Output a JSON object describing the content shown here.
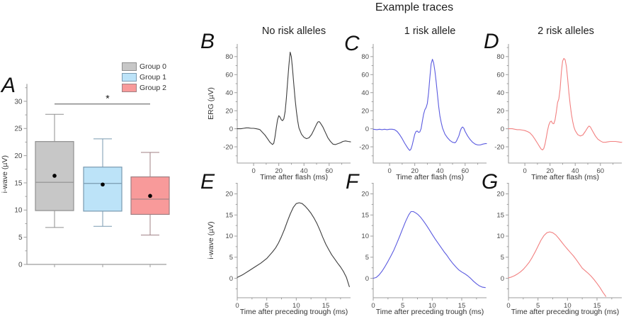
{
  "figure": {
    "title": "Example traces"
  },
  "colors": {
    "axis": "#9e9e9e",
    "tick_label": "#4a4a4a",
    "label_text": "#333333",
    "trace_black": "#3d3d3d",
    "trace_blue": "#5b5be0",
    "trace_red": "#f28080"
  },
  "chart_data": [
    {
      "type": "box",
      "letter": "A",
      "ylabel": "i-wave (µV)",
      "ylim": [
        0,
        33.2
      ],
      "yticks": [
        0,
        5,
        10,
        15,
        20,
        25,
        30
      ],
      "yminor": [
        2.5,
        7.5,
        12.5,
        17.5,
        22.5,
        27.5,
        32.5
      ],
      "groups": [
        {
          "label": "Group 0",
          "fill": "#c7c7c7",
          "stroke": "#8f8f8f",
          "whisker_low": 6.8,
          "q1": 9.9,
          "median": 15.1,
          "q3": 22.6,
          "whisker_high": 27.6,
          "mean": 16.3
        },
        {
          "label": "Group 1",
          "fill": "#bce3f8",
          "stroke": "#7a9ab0",
          "whisker_low": 7.0,
          "q1": 9.8,
          "median": 14.9,
          "q3": 17.9,
          "whisker_high": 23.1,
          "mean": 14.7
        },
        {
          "label": "Group 2",
          "fill": "#f89a9a",
          "stroke": "#a08084",
          "whisker_low": 5.4,
          "q1": 9.2,
          "median": 12.0,
          "q3": 16.1,
          "whisker_high": 20.6,
          "mean": 12.6
        }
      ],
      "significance": {
        "from_group": 0,
        "to_group": 2,
        "y": 29.5,
        "label": "*"
      }
    },
    {
      "type": "line",
      "letter": "B",
      "row": "top",
      "title": "No risk alleles",
      "xlabel": "Time after flash (ms)",
      "ylabel": "ERG (µV)",
      "color": "#3d3d3d",
      "xlim": [
        -13,
        77
      ],
      "ylim": [
        -38,
        94
      ],
      "xticks": [
        0,
        20,
        40,
        60
      ],
      "xminor": [
        10,
        30,
        50,
        70
      ],
      "yticks": [
        -20,
        0,
        20,
        40,
        60,
        80
      ],
      "yminor": [
        -30,
        -10,
        10,
        30,
        50,
        70,
        90
      ],
      "points": [
        [
          -13,
          0
        ],
        [
          -10,
          0
        ],
        [
          -8,
          0.5
        ],
        [
          -6,
          1
        ],
        [
          -4,
          1
        ],
        [
          -2,
          0.5
        ],
        [
          0,
          0.5
        ],
        [
          2,
          0
        ],
        [
          4,
          -0.5
        ],
        [
          5,
          -1
        ],
        [
          7,
          -4
        ],
        [
          9,
          -7
        ],
        [
          11,
          -11
        ],
        [
          13,
          -15
        ],
        [
          15,
          -17.5
        ],
        [
          16,
          -16
        ],
        [
          17,
          -9
        ],
        [
          18,
          1
        ],
        [
          19,
          10
        ],
        [
          20,
          14.5
        ],
        [
          21,
          13
        ],
        [
          22,
          10
        ],
        [
          23,
          9
        ],
        [
          24,
          11
        ],
        [
          25,
          19
        ],
        [
          26,
          33
        ],
        [
          27,
          52
        ],
        [
          28,
          70
        ],
        [
          29,
          85
        ],
        [
          30,
          80
        ],
        [
          31,
          65
        ],
        [
          32,
          48
        ],
        [
          33,
          32
        ],
        [
          34,
          19
        ],
        [
          35,
          9
        ],
        [
          36,
          1
        ],
        [
          38,
          -6
        ],
        [
          40,
          -9.5
        ],
        [
          42,
          -11
        ],
        [
          44,
          -10
        ],
        [
          46,
          -6.5
        ],
        [
          48,
          -1
        ],
        [
          50,
          5
        ],
        [
          51,
          7.5
        ],
        [
          52,
          8
        ],
        [
          53,
          6.5
        ],
        [
          55,
          2
        ],
        [
          57,
          -4
        ],
        [
          59,
          -10
        ],
        [
          61,
          -14
        ],
        [
          63,
          -17
        ],
        [
          65,
          -17.5
        ],
        [
          67,
          -16.5
        ],
        [
          69,
          -15.5
        ],
        [
          71,
          -14
        ],
        [
          73,
          -13.5
        ],
        [
          75,
          -14
        ],
        [
          77,
          -14.5
        ]
      ]
    },
    {
      "type": "line",
      "letter": "C",
      "row": "top",
      "title": "1 risk allele",
      "xlabel": "Time after flash (ms)",
      "ylabel": "",
      "color": "#5b5be0",
      "xlim": [
        -13,
        77
      ],
      "ylim": [
        -38,
        94
      ],
      "xticks": [
        0,
        20,
        40,
        60
      ],
      "xminor": [
        10,
        30,
        50,
        70
      ],
      "yticks": [
        -20,
        0,
        20,
        40,
        60,
        80
      ],
      "yminor": [
        -30,
        -10,
        10,
        30,
        50,
        70,
        90
      ],
      "points": [
        [
          -13,
          -0.5
        ],
        [
          -10,
          -1
        ],
        [
          -8,
          -0.5
        ],
        [
          -6,
          -1
        ],
        [
          -4,
          -0.5
        ],
        [
          -2,
          -1
        ],
        [
          0,
          -0.5
        ],
        [
          2,
          -0.5
        ],
        [
          4,
          -1
        ],
        [
          6,
          -3
        ],
        [
          8,
          -6.5
        ],
        [
          10,
          -11
        ],
        [
          12,
          -16
        ],
        [
          14,
          -20.5
        ],
        [
          15,
          -22.5
        ],
        [
          16,
          -24
        ],
        [
          17,
          -22.5
        ],
        [
          18,
          -18
        ],
        [
          19,
          -12
        ],
        [
          20,
          -6
        ],
        [
          21,
          -3
        ],
        [
          22,
          -2.5
        ],
        [
          23,
          -4
        ],
        [
          24,
          -3.5
        ],
        [
          25,
          0
        ],
        [
          26,
          8
        ],
        [
          27,
          16
        ],
        [
          28,
          21
        ],
        [
          29,
          23.5
        ],
        [
          30,
          28
        ],
        [
          31,
          40
        ],
        [
          32,
          57
        ],
        [
          33,
          72
        ],
        [
          34,
          77
        ],
        [
          35,
          73
        ],
        [
          36,
          64
        ],
        [
          37,
          52
        ],
        [
          38,
          38
        ],
        [
          39,
          25
        ],
        [
          40,
          14
        ],
        [
          41,
          7
        ],
        [
          42,
          1
        ],
        [
          44,
          -6
        ],
        [
          46,
          -10
        ],
        [
          48,
          -13
        ],
        [
          50,
          -15
        ],
        [
          52,
          -15.5
        ],
        [
          53,
          -14
        ],
        [
          55,
          -8
        ],
        [
          56,
          -3
        ],
        [
          57,
          0.5
        ],
        [
          58,
          2
        ],
        [
          59,
          0.5
        ],
        [
          60,
          -3
        ],
        [
          62,
          -8
        ],
        [
          64,
          -12
        ],
        [
          66,
          -15
        ],
        [
          68,
          -17
        ],
        [
          70,
          -18
        ],
        [
          72,
          -18
        ],
        [
          74,
          -17
        ],
        [
          76,
          -16.5
        ],
        [
          77,
          -16.5
        ]
      ]
    },
    {
      "type": "line",
      "letter": "D",
      "row": "top",
      "title": "2 risk alleles",
      "xlabel": "Time after flash (ms)",
      "ylabel": "",
      "color": "#f28080",
      "xlim": [
        -13,
        77
      ],
      "ylim": [
        -38,
        94
      ],
      "xticks": [
        0,
        20,
        40,
        60
      ],
      "xminor": [
        10,
        30,
        50,
        70
      ],
      "yticks": [
        -20,
        0,
        20,
        40,
        60,
        80
      ],
      "yminor": [
        -30,
        -10,
        10,
        30,
        50,
        70,
        90
      ],
      "points": [
        [
          -13,
          0
        ],
        [
          -10,
          0
        ],
        [
          -8,
          -0.5
        ],
        [
          -6,
          -1
        ],
        [
          -4,
          -1
        ],
        [
          -2,
          -1.5
        ],
        [
          0,
          -2
        ],
        [
          2,
          -3
        ],
        [
          4,
          -4.5
        ],
        [
          6,
          -7.5
        ],
        [
          8,
          -11.5
        ],
        [
          10,
          -16
        ],
        [
          12,
          -20.5
        ],
        [
          13,
          -22.5
        ],
        [
          14,
          -23.5
        ],
        [
          15,
          -22
        ],
        [
          16,
          -17
        ],
        [
          17,
          -10
        ],
        [
          18,
          -2
        ],
        [
          19,
          4
        ],
        [
          20,
          7.5
        ],
        [
          21,
          8.5
        ],
        [
          22,
          6
        ],
        [
          23,
          5.5
        ],
        [
          24,
          10
        ],
        [
          25,
          19
        ],
        [
          26,
          29
        ],
        [
          27,
          33
        ],
        [
          28,
          44
        ],
        [
          29,
          63
        ],
        [
          30,
          75
        ],
        [
          31,
          78
        ],
        [
          32,
          76.5
        ],
        [
          33,
          69
        ],
        [
          34,
          55
        ],
        [
          35,
          40
        ],
        [
          36,
          27
        ],
        [
          37,
          16
        ],
        [
          38,
          8
        ],
        [
          39,
          2
        ],
        [
          40,
          -2
        ],
        [
          42,
          -6.5
        ],
        [
          44,
          -8
        ],
        [
          46,
          -7
        ],
        [
          48,
          -3
        ],
        [
          50,
          1.5
        ],
        [
          51,
          3
        ],
        [
          52,
          2
        ],
        [
          54,
          -3
        ],
        [
          56,
          -8
        ],
        [
          58,
          -11.5
        ],
        [
          60,
          -13.5
        ],
        [
          62,
          -15
        ],
        [
          64,
          -15
        ],
        [
          66,
          -14.5
        ],
        [
          68,
          -14
        ],
        [
          70,
          -14
        ],
        [
          72,
          -14
        ],
        [
          74,
          -14.5
        ],
        [
          76,
          -15
        ],
        [
          77,
          -15
        ]
      ]
    },
    {
      "type": "line",
      "letter": "E",
      "row": "bottom",
      "title": "",
      "xlabel": "Time after preceding trough (ms)",
      "ylabel": "i-wave (µV)",
      "color": "#3d3d3d",
      "xlim": [
        0,
        19.2
      ],
      "ylim": [
        -4.6,
        22.6
      ],
      "xticks": [
        0,
        5,
        10,
        15
      ],
      "xminor": [
        2.5,
        7.5,
        12.5,
        17.5
      ],
      "yticks": [
        0,
        5,
        10,
        15,
        20
      ],
      "yminor": [
        -2.5,
        2.5,
        7.5,
        12.5,
        17.5,
        22.5
      ],
      "points": [
        [
          0,
          0.2
        ],
        [
          1,
          0.9
        ],
        [
          2,
          1.8
        ],
        [
          3,
          2.7
        ],
        [
          4,
          3.6
        ],
        [
          5,
          4.7
        ],
        [
          6,
          6.3
        ],
        [
          6.5,
          7.2
        ],
        [
          7,
          8.4
        ],
        [
          7.5,
          9.9
        ],
        [
          8,
          11.6
        ],
        [
          8.5,
          13.5
        ],
        [
          9,
          15.3
        ],
        [
          9.5,
          16.8
        ],
        [
          10,
          17.7
        ],
        [
          10.5,
          17.9
        ],
        [
          11,
          17.7
        ],
        [
          11.5,
          17.1
        ],
        [
          12,
          16.3
        ],
        [
          12.5,
          15.4
        ],
        [
          13,
          14.3
        ],
        [
          13.5,
          13
        ],
        [
          14,
          11.4
        ],
        [
          14.5,
          9.7
        ],
        [
          15,
          8.1
        ],
        [
          15.5,
          6.8
        ],
        [
          16,
          5.6
        ],
        [
          16.5,
          4.6
        ],
        [
          17,
          3.6
        ],
        [
          17.5,
          2.7
        ],
        [
          18,
          1.6
        ],
        [
          18.5,
          0.2
        ],
        [
          19,
          -2
        ]
      ]
    },
    {
      "type": "line",
      "letter": "F",
      "row": "bottom",
      "title": "",
      "xlabel": "Time after preceding trough (ms)",
      "ylabel": "",
      "color": "#5b5be0",
      "xlim": [
        0,
        19.2
      ],
      "ylim": [
        -4.6,
        22.6
      ],
      "xticks": [
        0,
        5,
        10,
        15
      ],
      "xminor": [
        2.5,
        7.5,
        12.5,
        17.5
      ],
      "yticks": [
        0,
        5,
        10,
        15,
        20
      ],
      "yminor": [
        -2.5,
        2.5,
        7.5,
        12.5,
        17.5,
        22.5
      ],
      "points": [
        [
          0,
          0
        ],
        [
          0.5,
          0.2
        ],
        [
          1,
          0.8
        ],
        [
          1.5,
          1.7
        ],
        [
          2,
          2.8
        ],
        [
          2.5,
          4
        ],
        [
          3,
          5.3
        ],
        [
          3.5,
          6.7
        ],
        [
          4,
          8.3
        ],
        [
          4.5,
          10
        ],
        [
          5,
          11.8
        ],
        [
          5.5,
          13.5
        ],
        [
          6,
          15
        ],
        [
          6.4,
          15.8
        ],
        [
          6.8,
          15.8
        ],
        [
          7.2,
          15.5
        ],
        [
          7.6,
          15.1
        ],
        [
          8,
          14.5
        ],
        [
          8.5,
          13.6
        ],
        [
          9,
          12.6
        ],
        [
          9.5,
          11.5
        ],
        [
          10,
          10.4
        ],
        [
          10.5,
          9.3
        ],
        [
          11,
          8.3
        ],
        [
          11.5,
          7.3
        ],
        [
          12,
          6.3
        ],
        [
          12.5,
          5.4
        ],
        [
          13,
          4.4
        ],
        [
          13.5,
          3.5
        ],
        [
          14,
          2.7
        ],
        [
          14.5,
          2
        ],
        [
          15,
          1.5
        ],
        [
          15.5,
          1.1
        ],
        [
          16,
          0.6
        ],
        [
          16.5,
          0
        ],
        [
          17,
          -0.7
        ],
        [
          17.5,
          -1.3
        ],
        [
          18,
          -1.8
        ],
        [
          18.5,
          -2.1
        ],
        [
          19,
          -2.2
        ]
      ]
    },
    {
      "type": "line",
      "letter": "G",
      "row": "bottom",
      "title": "",
      "xlabel": "Time after preceding trough (ms)",
      "ylabel": "",
      "color": "#f28080",
      "xlim": [
        0,
        19.2
      ],
      "ylim": [
        -4.6,
        22.6
      ],
      "xticks": [
        0,
        5,
        10,
        15
      ],
      "xminor": [
        2.5,
        7.5,
        12.5,
        17.5
      ],
      "yticks": [
        0,
        5,
        10,
        15,
        20
      ],
      "yminor": [
        -2.5,
        2.5,
        7.5,
        12.5,
        17.5,
        22.5
      ],
      "points": [
        [
          0,
          0.1
        ],
        [
          0.5,
          0.3
        ],
        [
          1,
          0.6
        ],
        [
          1.5,
          1
        ],
        [
          2,
          1.5
        ],
        [
          2.5,
          2.1
        ],
        [
          3,
          2.9
        ],
        [
          3.5,
          3.8
        ],
        [
          4,
          4.9
        ],
        [
          4.5,
          6.2
        ],
        [
          5,
          7.6
        ],
        [
          5.5,
          9
        ],
        [
          6,
          10.1
        ],
        [
          6.5,
          10.8
        ],
        [
          7,
          11
        ],
        [
          7.5,
          10.8
        ],
        [
          8,
          10.3
        ],
        [
          8.5,
          9.5
        ],
        [
          9,
          8.6
        ],
        [
          9.5,
          7.7
        ],
        [
          10,
          6.9
        ],
        [
          10.5,
          6.1
        ],
        [
          11,
          5.3
        ],
        [
          11.5,
          4.4
        ],
        [
          12,
          3.4
        ],
        [
          12.5,
          2.4
        ],
        [
          13,
          1.8
        ],
        [
          13.5,
          1.2
        ],
        [
          14,
          0.5
        ],
        [
          14.5,
          -0.3
        ],
        [
          15,
          -1.2
        ],
        [
          15.5,
          -2.2
        ],
        [
          16,
          -3.3
        ],
        [
          16.5,
          -4.3
        ]
      ]
    }
  ]
}
